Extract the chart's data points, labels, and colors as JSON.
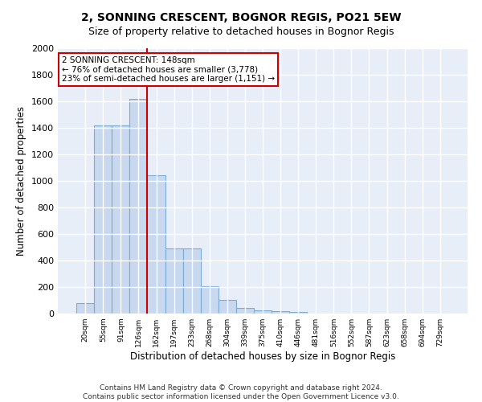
{
  "title": "2, SONNING CRESCENT, BOGNOR REGIS, PO21 5EW",
  "subtitle": "Size of property relative to detached houses in Bognor Regis",
  "xlabel": "Distribution of detached houses by size in Bognor Regis",
  "ylabel": "Number of detached properties",
  "categories": [
    "20sqm",
    "55sqm",
    "91sqm",
    "126sqm",
    "162sqm",
    "197sqm",
    "233sqm",
    "268sqm",
    "304sqm",
    "339sqm",
    "375sqm",
    "410sqm",
    "446sqm",
    "481sqm",
    "516sqm",
    "552sqm",
    "587sqm",
    "623sqm",
    "658sqm",
    "694sqm",
    "729sqm"
  ],
  "values": [
    80,
    1420,
    1420,
    1620,
    1040,
    490,
    490,
    205,
    105,
    40,
    25,
    20,
    15,
    0,
    0,
    0,
    0,
    0,
    0,
    0,
    0
  ],
  "bar_color": "#c8d8ee",
  "bar_edge_color": "#7aacd4",
  "background_color": "#e8eef8",
  "grid_color": "#ffffff",
  "red_line_x": 3.5,
  "annotation_text": "2 SONNING CRESCENT: 148sqm\n← 76% of detached houses are smaller (3,778)\n23% of semi-detached houses are larger (1,151) →",
  "annotation_box_color": "#ffffff",
  "annotation_border_color": "#cc0000",
  "ylim": [
    0,
    2000
  ],
  "yticks": [
    0,
    200,
    400,
    600,
    800,
    1000,
    1200,
    1400,
    1600,
    1800,
    2000
  ],
  "footer": "Contains HM Land Registry data © Crown copyright and database right 2024.\nContains public sector information licensed under the Open Government Licence v3.0.",
  "title_fontsize": 10,
  "subtitle_fontsize": 9,
  "xlabel_fontsize": 8.5,
  "ylabel_fontsize": 8.5
}
